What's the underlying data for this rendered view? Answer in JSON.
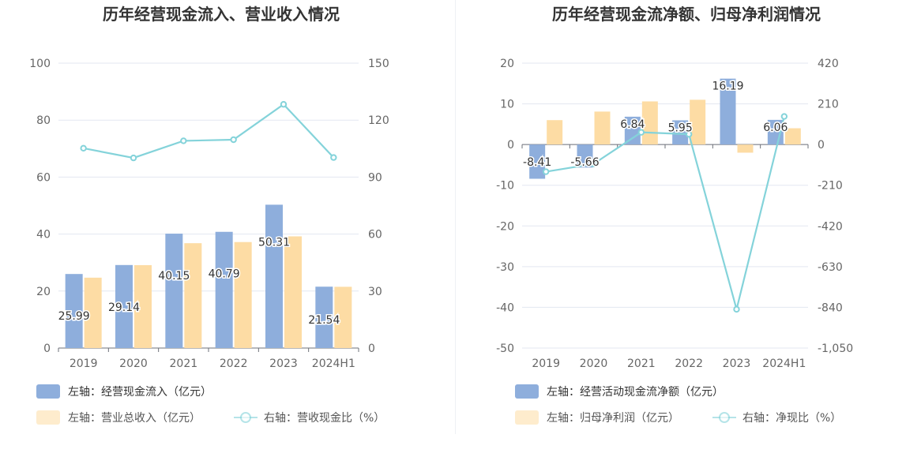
{
  "chart_data": [
    {
      "type": "bar",
      "title": "历年经营现金流入、营业收入情况",
      "categories": [
        "2019",
        "2020",
        "2021",
        "2022",
        "2023",
        "2024H1"
      ],
      "left_axis": {
        "ticks": [
          "0",
          "20",
          "40",
          "60",
          "80",
          "100"
        ],
        "ylim": [
          0,
          100
        ]
      },
      "right_axis": {
        "ticks": [
          "0",
          "30",
          "60",
          "90",
          "120",
          "150"
        ],
        "ylim": [
          0,
          150
        ]
      },
      "grid": true,
      "legend_position": "bottom-left",
      "series": [
        {
          "name": "左轴：经营现金流入（亿元）",
          "axis": "left",
          "type": "bar",
          "color": "#8eaedc",
          "values": [
            25.99,
            29.14,
            40.15,
            40.79,
            50.31,
            21.54
          ],
          "labels": [
            "25.99",
            "29.14",
            "40.15",
            "40.79",
            "50.31",
            "21.54"
          ]
        },
        {
          "name": "左轴：营业总收入（亿元）",
          "axis": "left",
          "type": "bar",
          "color": "#fddca4",
          "values": [
            24.7,
            29.1,
            36.8,
            37.2,
            39.2,
            21.5
          ]
        },
        {
          "name": "右轴：营收现金比（%）",
          "axis": "right",
          "type": "line",
          "color": "#84d3da",
          "values": [
            105.2,
            100.1,
            109.1,
            109.7,
            128.3,
            100.3
          ]
        }
      ]
    },
    {
      "type": "bar",
      "title": "历年经营现金流净额、归母净利润情况",
      "categories": [
        "2019",
        "2020",
        "2021",
        "2022",
        "2023",
        "2024H1"
      ],
      "left_axis": {
        "ticks": [
          "-50",
          "-40",
          "-30",
          "-20",
          "-10",
          "0",
          "10",
          "20"
        ],
        "ylim": [
          -50,
          20
        ]
      },
      "right_axis": {
        "ticks": [
          "-1,050",
          "-840",
          "-630",
          "-420",
          "-210",
          "0",
          "210",
          "420"
        ],
        "ylim": [
          -1050,
          420
        ]
      },
      "grid": true,
      "legend_position": "bottom-left",
      "series": [
        {
          "name": "左轴：经营活动现金流净额（亿元）",
          "axis": "left",
          "type": "bar",
          "color": "#8eaedc",
          "values": [
            -8.41,
            -5.66,
            6.84,
            5.95,
            16.19,
            6.06
          ],
          "labels": [
            "-8.41",
            "-5.66",
            "6.84",
            "5.95",
            "16.19",
            "6.06"
          ]
        },
        {
          "name": "左轴：归母净利润（亿元）",
          "axis": "left",
          "type": "bar",
          "color": "#fddca4",
          "values": [
            6.0,
            8.1,
            10.6,
            11.0,
            -2.0,
            4.0
          ]
        },
        {
          "name": "右轴：净现比（%）",
          "axis": "right",
          "type": "line",
          "color": "#84d3da",
          "values": [
            -140,
            -100,
            63,
            53,
            -850,
            145
          ]
        }
      ]
    }
  ]
}
